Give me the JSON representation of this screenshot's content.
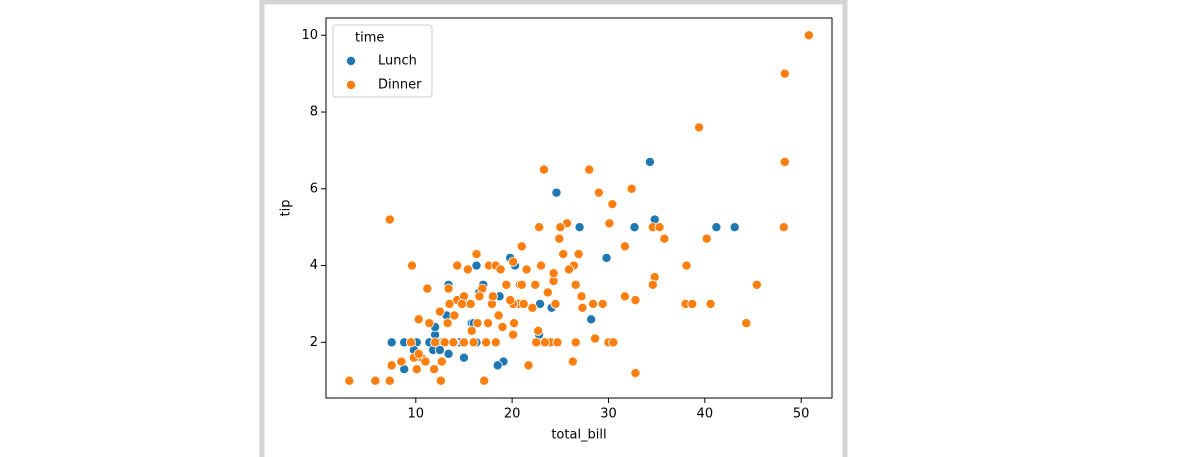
{
  "chart_data": {
    "type": "scatter",
    "x_label": "total_bill",
    "y_label": "tip",
    "legend_title": "time",
    "legend_position": "upper left",
    "xlim": [
      0.68,
      53.2
    ],
    "ylim": [
      0.55,
      10.45
    ],
    "xticks": [
      10,
      20,
      30,
      40,
      50
    ],
    "yticks": [
      2,
      4,
      6,
      8,
      10
    ],
    "grid": false,
    "series": [
      {
        "name": "Lunch",
        "color": "#1f77b4",
        "x": [
          34.3,
          24.6,
          34.8,
          41.2,
          43.1,
          27.0,
          32.7,
          29.8,
          19.8,
          16.3,
          18.3,
          20.3,
          17.0,
          13.4,
          16.6,
          18.7,
          22.9,
          24.1,
          15.5,
          17.9,
          28.2,
          22.8,
          19.1,
          18.5,
          15.8,
          13.0,
          12.7,
          12.2,
          11.4,
          10.1,
          7.5,
          8.8,
          12.0,
          11.8,
          10.3,
          9.8,
          14.5,
          12.5,
          8.6,
          8.8,
          10.0,
          15.0,
          16.3,
          13.4,
          12.0,
          14.0,
          13.2,
          16.0,
          20.6
        ],
        "y": [
          6.7,
          5.9,
          5.2,
          5.0,
          5.0,
          5.0,
          5.0,
          4.2,
          4.2,
          4.0,
          4.0,
          4.0,
          3.5,
          3.5,
          3.3,
          3.2,
          3.0,
          2.9,
          3.0,
          3.0,
          2.6,
          2.2,
          1.5,
          1.4,
          2.5,
          2.0,
          2.0,
          2.0,
          2.0,
          2.0,
          2.0,
          2.0,
          2.2,
          1.8,
          1.7,
          1.8,
          2.0,
          1.8,
          1.5,
          1.3,
          1.6,
          1.6,
          2.0,
          1.7,
          2.4,
          2.0,
          2.7,
          2.5,
          3.0
        ]
      },
      {
        "name": "Dinner",
        "color": "#ff7f0e",
        "x": [
          50.8,
          48.3,
          39.4,
          48.3,
          23.3,
          28.0,
          29.0,
          32.4,
          30.4,
          7.3,
          25.7,
          34.6,
          48.2,
          25.0,
          30.1,
          35.3,
          22.8,
          35.8,
          40.2,
          24.9,
          31.7,
          21.0,
          25.3,
          26.9,
          16.3,
          9.6,
          14.3,
          17.6,
          18.3,
          20.1,
          23.0,
          26.4,
          38.1,
          21.5,
          18.8,
          15.4,
          34.8,
          34.6,
          45.4,
          24.3,
          20.8,
          21.0,
          26.6,
          22.4,
          19.4,
          13.4,
          16.9,
          11.2,
          27.2,
          31.7,
          32.8,
          38.0,
          38.7,
          40.6,
          28.4,
          29.4,
          24.5,
          20.7,
          17.9,
          15.7,
          14.3,
          13.5,
          20.1,
          21.2,
          27.3,
          23.7,
          22.1,
          19.8,
          16.6,
          15.0,
          18.0,
          12.5,
          10.3,
          14.0,
          18.6,
          20.2,
          24.0,
          16.4,
          11.4,
          13.3,
          15.8,
          17.5,
          19.0,
          20.1,
          9.5,
          10.6,
          11.0,
          12.0,
          12.7,
          13.9,
          15.0,
          16.0,
          17.3,
          18.3,
          22.5,
          23.4,
          24.7,
          26.6,
          28.6,
          30.0,
          30.5,
          9.8,
          10.3,
          11.9,
          8.5,
          7.5,
          10.1,
          12.6,
          17.1,
          5.8,
          3.1,
          7.3,
          32.8,
          44.3,
          26.3,
          21.7,
          13.0,
          14.8,
          22.7,
          24.3,
          25.9
        ],
        "y": [
          10,
          9,
          7.6,
          6.7,
          6.5,
          6.5,
          5.9,
          6.0,
          5.6,
          5.2,
          5.1,
          5.0,
          5.0,
          5.0,
          5.1,
          5.0,
          5.0,
          4.7,
          4.7,
          4.7,
          4.5,
          4.5,
          4.3,
          4.3,
          4.3,
          4.0,
          4.0,
          4.0,
          4.0,
          4.1,
          4.0,
          4.0,
          4.0,
          3.9,
          3.9,
          3.9,
          3.7,
          3.5,
          3.5,
          3.6,
          3.5,
          3.5,
          3.5,
          3.5,
          3.5,
          3.4,
          3.4,
          3.4,
          3.2,
          3.2,
          3.1,
          3.0,
          3.0,
          3.0,
          3.0,
          3.0,
          3.0,
          3.0,
          3.0,
          3.0,
          3.1,
          3.0,
          3.0,
          3.0,
          2.9,
          3.3,
          2.9,
          3.1,
          3.2,
          3.2,
          3.2,
          2.8,
          2.6,
          2.7,
          2.7,
          2.5,
          2.0,
          2.5,
          2.5,
          2.5,
          2.3,
          2.5,
          2.4,
          2.2,
          2.0,
          1.6,
          1.5,
          2.0,
          1.5,
          2.0,
          2.0,
          2.0,
          2.0,
          2.0,
          2.0,
          2.0,
          2.0,
          2.0,
          2.1,
          2.0,
          2.0,
          1.6,
          1.7,
          1.3,
          1.5,
          1.4,
          1.3,
          1.0,
          1.0,
          1.0,
          1.0,
          1.0,
          1.2,
          2.5,
          1.5,
          1.4,
          2.0,
          3.0,
          2.3,
          3.8,
          3.9
        ]
      }
    ]
  }
}
